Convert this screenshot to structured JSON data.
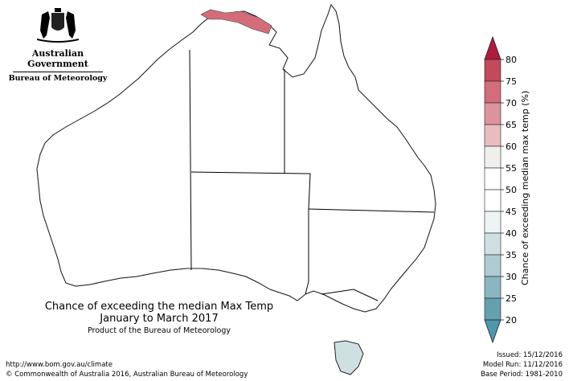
{
  "logo": {
    "title": "Australian Government",
    "subtitle": "Bureau of Meteorology"
  },
  "map": {
    "title_line1": "Chance of exceeding the median Max Temp",
    "title_line2": "January to March 2017",
    "product_note": "Product of the Bureau of Meteorology",
    "url": "http://www.bom.gov.au/climate",
    "copyright": "© Commonwealth of Australia 2016, Australian Bureau of Meteorology",
    "issued": "Issued: 15/12/2016",
    "model_run": "Model Run: 11/12/2016",
    "base_period": "Base Period: 1981-2010"
  },
  "legend": {
    "title": "Chance of exceeding median max temp (%)",
    "ticks": [
      "80",
      "75",
      "70",
      "65",
      "60",
      "55",
      "50",
      "45",
      "40",
      "35",
      "30",
      "25",
      "20"
    ],
    "colors": [
      "#c24a5a",
      "#d26d79",
      "#dd939b",
      "#e8bcc0",
      "#f0efee",
      "#ffffff",
      "#ffffff",
      "#eef3f4",
      "#cfe0e3",
      "#aecbd1",
      "#8ab6c1",
      "#63a1b1"
    ],
    "top_arrow_color": "#b01c3b",
    "bottom_arrow_color": "#4c97ac"
  },
  "palette": {
    "warm_80": "#c24a5a",
    "warm_75": "#d26d79",
    "warm_70": "#dd939b",
    "warm_65": "#e8bcc0",
    "neutral_55": "#f0efee",
    "cool_45": "#eef3f4",
    "cool_40": "#cfe0e3",
    "cool_35": "#aecbd1",
    "cool_30": "#8ab6c1"
  }
}
